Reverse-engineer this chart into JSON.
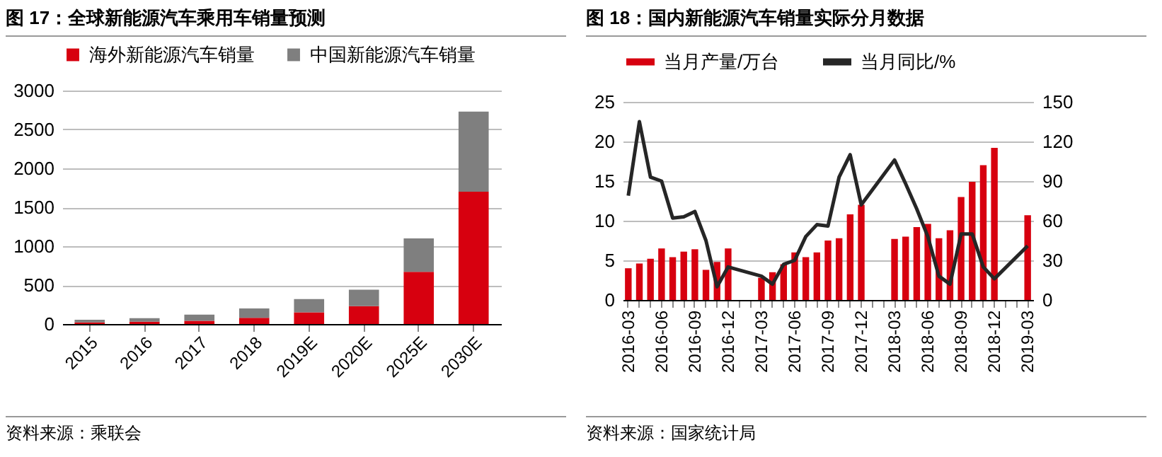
{
  "chart_data": [
    {
      "type": "bar",
      "title": "图 17：全球新能源汽车乘用车销量预测",
      "stacked": true,
      "categories": [
        "2015",
        "2016",
        "2017",
        "2018",
        "2019E",
        "2020E",
        "2025E",
        "2030E"
      ],
      "series": [
        {
          "name": "海外新能源汽车销量",
          "color": "#d7000f",
          "values": [
            20,
            30,
            40,
            80,
            150,
            230,
            670,
            1700
          ]
        },
        {
          "name": "中国新能源汽车销量",
          "color": "#7f7f7f",
          "values": [
            35,
            45,
            80,
            120,
            170,
            210,
            430,
            1030
          ]
        }
      ],
      "ylim": [
        0,
        3000
      ],
      "yticks": [
        0,
        500,
        1000,
        1500,
        2000,
        2500,
        3000
      ],
      "grid": "y",
      "legend": "top",
      "annotations": [
        "资料来源：乘联会"
      ]
    },
    {
      "type": "bar",
      "title": "图 18：国内新能源汽车销量实际分月数据",
      "categories": [
        "2016-03",
        null,
        null,
        "2016-06",
        null,
        null,
        "2016-09",
        null,
        null,
        "2016-12",
        null,
        null,
        "2017-03",
        null,
        null,
        "2017-06",
        null,
        null,
        "2017-09",
        null,
        null,
        "2017-12",
        null,
        null,
        "2018-03",
        null,
        null,
        "2018-06",
        null,
        null,
        "2018-09",
        null,
        null,
        "2018-12",
        null,
        null,
        "2019-03"
      ],
      "series": [
        {
          "name": "当月产量/万台",
          "color": "#d7000f",
          "values": [
            4.0,
            4.6,
            5.2,
            6.5,
            5.4,
            6.1,
            6.4,
            3.8,
            4.8,
            6.5,
            null,
            null,
            2.8,
            3.5,
            4.5,
            6.0,
            5.4,
            6.0,
            7.5,
            7.8,
            10.8,
            12.0,
            null,
            null,
            7.7,
            8.0,
            9.2,
            9.6,
            7.8,
            8.8,
            13.0,
            14.9,
            17.0,
            19.2,
            null,
            null,
            10.7
          ]
        },
        {
          "name": "当月同比/%",
          "type": "line",
          "axis": "y2",
          "color": "#262626",
          "values": [
            79,
            135,
            93,
            90,
            62,
            63,
            67,
            45,
            10,
            25,
            null,
            null,
            18,
            12,
            27,
            30,
            48,
            57,
            56,
            93,
            110,
            72,
            null,
            null,
            106,
            88,
            69,
            48,
            18,
            12,
            50,
            50,
            25,
            16,
            null,
            null,
            41
          ]
        }
      ],
      "ylim": [
        0,
        25
      ],
      "yticks": [
        0,
        5,
        10,
        15,
        20,
        25
      ],
      "y2lim": [
        0,
        150
      ],
      "y2ticks": [
        0,
        30,
        60,
        90,
        120,
        150
      ],
      "grid": "y",
      "legend": "top",
      "annotations": [
        "资料来源：国家统计局"
      ]
    }
  ]
}
